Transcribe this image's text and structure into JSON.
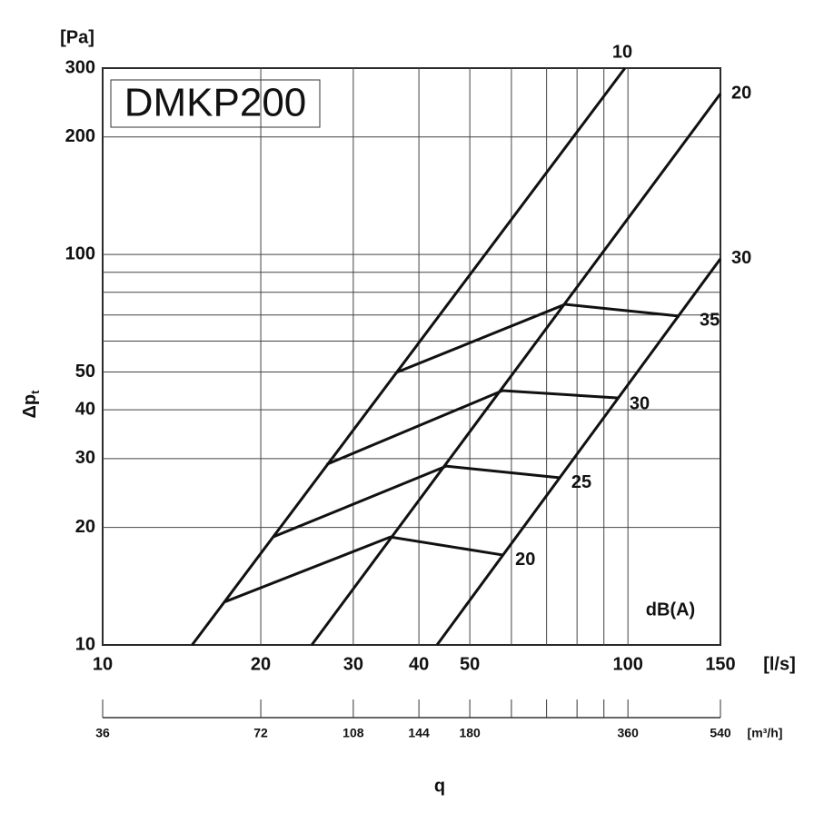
{
  "chart_data": {
    "type": "line",
    "title": "DMKP200",
    "y_unit": "[Pa]",
    "y_label": "Δp",
    "y_label_sub": "t",
    "x_unit": "[l/s]",
    "x_label": "q",
    "x2_unit": "[m³/h]",
    "annotation": "dB(A)",
    "log_x": true,
    "log_y": true,
    "grid": true,
    "xlim": [
      10,
      150
    ],
    "ylim": [
      10,
      300
    ],
    "xticks": [
      10,
      20,
      30,
      40,
      50,
      100,
      150
    ],
    "x_minor": [
      60,
      70,
      80,
      90
    ],
    "yticks": [
      10,
      20,
      30,
      40,
      50,
      100,
      200,
      300
    ],
    "y_minor": [
      60,
      70,
      80,
      90
    ],
    "x2lim": [
      36,
      540
    ],
    "x2ticks": [
      36,
      72,
      108,
      144,
      180,
      360,
      540
    ],
    "x2_minor": [
      216,
      252,
      288,
      324
    ],
    "series": [
      {
        "name": "10",
        "group": "pressure",
        "color": "#111111",
        "x": [
          14.8,
          98.7
        ],
        "values": [
          10,
          300
        ]
      },
      {
        "name": "20",
        "group": "pressure",
        "color": "#111111",
        "x": [
          25.0,
          150
        ],
        "values": [
          10,
          258
        ]
      },
      {
        "name": "30",
        "group": "pressure",
        "color": "#111111",
        "x": [
          43.3,
          150
        ],
        "values": [
          10,
          97.5
        ]
      },
      {
        "name": "35",
        "group": "sound",
        "color": "#111111",
        "x": [
          36.3,
          75.9,
          125.4
        ],
        "values": [
          49.9,
          74.5,
          69.5
        ]
      },
      {
        "name": "30",
        "group": "sound",
        "color": "#111111",
        "x": [
          26.7,
          57.7,
          96.0
        ],
        "values": [
          29.0,
          44.8,
          42.9
        ]
      },
      {
        "name": "25",
        "group": "sound",
        "color": "#111111",
        "x": [
          21.1,
          45.1,
          74.4
        ],
        "values": [
          18.9,
          28.7,
          26.8
        ]
      },
      {
        "name": "20",
        "group": "sound",
        "color": "#111111",
        "x": [
          17.1,
          35.3,
          57.7
        ],
        "values": [
          12.9,
          18.9,
          17.0
        ]
      }
    ]
  }
}
